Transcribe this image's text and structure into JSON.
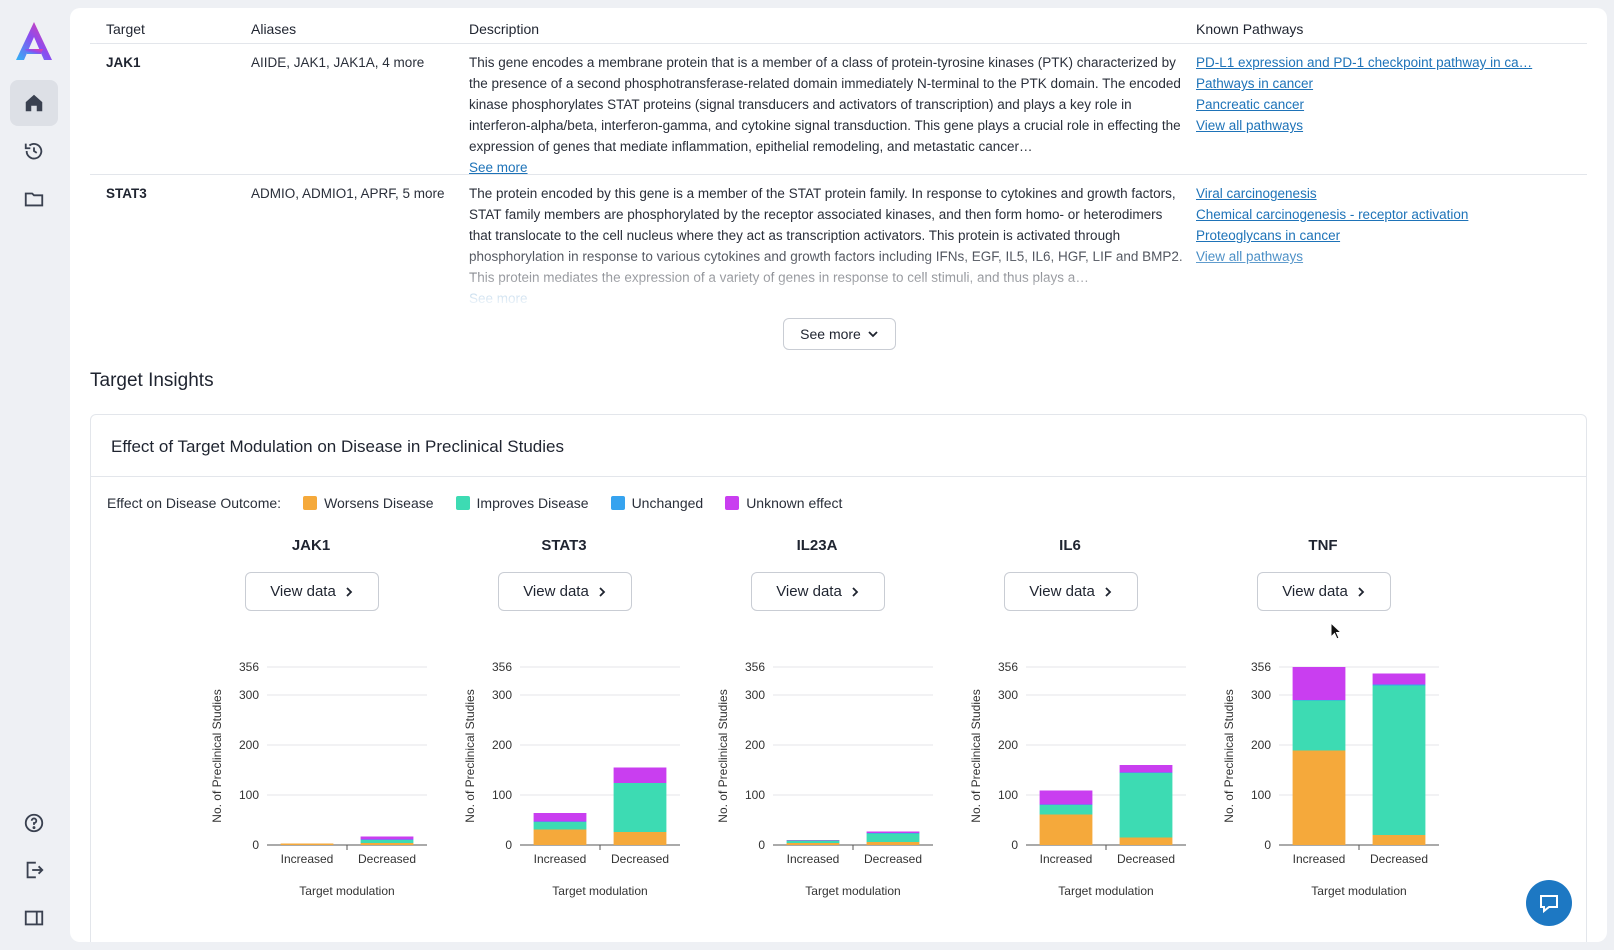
{
  "nav": {
    "items": [
      {
        "name": "home-icon",
        "active": true
      },
      {
        "name": "history-icon",
        "active": false
      },
      {
        "name": "folder-icon",
        "active": false
      }
    ],
    "bottom": [
      {
        "name": "help-icon"
      },
      {
        "name": "logout-icon"
      },
      {
        "name": "panel-icon"
      }
    ]
  },
  "table": {
    "headers": [
      "Target",
      "Aliases",
      "Description",
      "Known Pathways"
    ],
    "rows": [
      {
        "target": "JAK1",
        "aliases": "AIIDE, JAK1, JAK1A, 4 more",
        "description": "This gene encodes a membrane protein that is a member of a class of protein-tyrosine kinases (PTK) characterized by the presence of a second phosphotransferase-related domain immediately N-terminal to the PTK domain. The encoded kinase phosphorylates STAT proteins (signal transducers and activators of transcription) and plays a key role in interferon-alpha/beta, interferon-gamma, and cytokine signal transduction. This gene plays a crucial role in effecting the expression of genes that mediate inflammation, epithelial remodeling, and metastatic cancer…",
        "see_more": "See more",
        "pathways": [
          "PD-L1 expression and PD-1 checkpoint pathway in ca…",
          "Pathways in cancer",
          "Pancreatic cancer",
          "View all pathways"
        ]
      },
      {
        "target": "STAT3",
        "aliases": "ADMIO, ADMIO1, APRF, 5 more",
        "description": "The protein encoded by this gene is a member of the STAT protein family. In response to cytokines and growth factors, STAT family members are phosphorylated by the receptor associated kinases, and then form homo- or heterodimers that translocate to the cell nucleus where they act as transcription activators. This protein is activated through phosphorylation in response to various cytokines and growth factors including IFNs, EGF, IL5, IL6, HGF, LIF and BMP2. This protein mediates the expression of a variety of genes in response to cell stimuli, and thus plays a…",
        "see_more": "See more",
        "pathways": [
          "Viral carcinogenesis",
          "Chemical carcinogenesis - receptor activation",
          "Proteoglycans in cancer",
          "View all pathways"
        ]
      }
    ],
    "see_more_button": "See more"
  },
  "section_title": "Target Insights",
  "insights": {
    "title": "Effect of Target Modulation on Disease in Preclinical Studies",
    "legend_label": "Effect on Disease Outcome:",
    "legend": [
      {
        "label": "Worsens Disease",
        "color": "#f5a93b"
      },
      {
        "label": "Improves Disease",
        "color": "#3ddbb3"
      },
      {
        "label": "Unchanged",
        "color": "#36a3ef"
      },
      {
        "label": "Unknown effect",
        "color": "#c93ef0"
      }
    ],
    "view_button": "View data"
  },
  "chart_data": [
    {
      "type": "bar",
      "title": "JAK1",
      "categories": [
        "Increased",
        "Decreased"
      ],
      "xlabel": "Target modulation",
      "ylabel": "No. of Preclinical Studies",
      "ylim": [
        0,
        356
      ],
      "yticks": [
        0,
        100,
        200,
        300,
        356
      ],
      "series": [
        {
          "name": "Worsens Disease",
          "values": [
            3,
            4
          ]
        },
        {
          "name": "Improves Disease",
          "values": [
            0,
            6
          ]
        },
        {
          "name": "Unchanged",
          "values": [
            0,
            1
          ]
        },
        {
          "name": "Unknown effect",
          "values": [
            0,
            6
          ]
        }
      ]
    },
    {
      "type": "bar",
      "title": "STAT3",
      "categories": [
        "Increased",
        "Decreased"
      ],
      "xlabel": "Target modulation",
      "ylabel": "No. of Preclinical Studies",
      "ylim": [
        0,
        356
      ],
      "yticks": [
        0,
        100,
        200,
        300,
        356
      ],
      "series": [
        {
          "name": "Worsens Disease",
          "values": [
            31,
            26
          ]
        },
        {
          "name": "Improves Disease",
          "values": [
            15,
            98
          ]
        },
        {
          "name": "Unchanged",
          "values": [
            1,
            0
          ]
        },
        {
          "name": "Unknown effect",
          "values": [
            17,
            31
          ]
        }
      ]
    },
    {
      "type": "bar",
      "title": "IL23A",
      "categories": [
        "Increased",
        "Decreased"
      ],
      "xlabel": "Target modulation",
      "ylabel": "No. of Preclinical Studies",
      "ylim": [
        0,
        356
      ],
      "yticks": [
        0,
        100,
        200,
        300,
        356
      ],
      "series": [
        {
          "name": "Worsens Disease",
          "values": [
            4,
            6
          ]
        },
        {
          "name": "Improves Disease",
          "values": [
            5,
            17
          ]
        },
        {
          "name": "Unchanged",
          "values": [
            0,
            1
          ]
        },
        {
          "name": "Unknown effect",
          "values": [
            1,
            3
          ]
        }
      ]
    },
    {
      "type": "bar",
      "title": "IL6",
      "categories": [
        "Increased",
        "Decreased"
      ],
      "xlabel": "Target modulation",
      "ylabel": "No. of Preclinical Studies",
      "ylim": [
        0,
        356
      ],
      "yticks": [
        0,
        100,
        200,
        300,
        356
      ],
      "series": [
        {
          "name": "Worsens Disease",
          "values": [
            61,
            15
          ]
        },
        {
          "name": "Improves Disease",
          "values": [
            19,
            129
          ]
        },
        {
          "name": "Unchanged",
          "values": [
            1,
            1
          ]
        },
        {
          "name": "Unknown effect",
          "values": [
            28,
            15
          ]
        }
      ]
    },
    {
      "type": "bar",
      "title": "TNF",
      "categories": [
        "Increased",
        "Decreased"
      ],
      "xlabel": "Target modulation",
      "ylabel": "No. of Preclinical Studies",
      "ylim": [
        0,
        356
      ],
      "yticks": [
        0,
        100,
        200,
        300,
        356
      ],
      "series": [
        {
          "name": "Worsens Disease",
          "values": [
            189,
            20
          ]
        },
        {
          "name": "Improves Disease",
          "values": [
            100,
            299
          ]
        },
        {
          "name": "Unchanged",
          "values": [
            1,
            2
          ]
        },
        {
          "name": "Unknown effect",
          "values": [
            66,
            22
          ]
        }
      ]
    }
  ]
}
